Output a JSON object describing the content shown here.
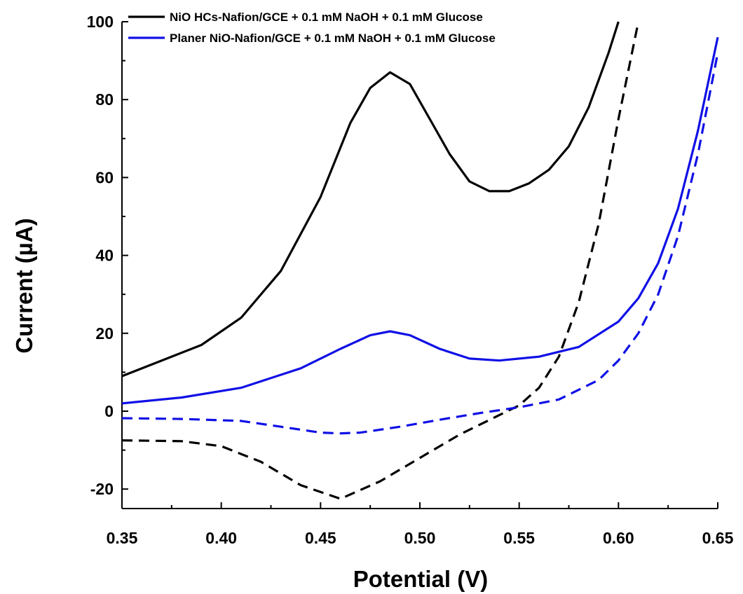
{
  "chart_data": {
    "type": "line",
    "xlabel": "Potential (V)",
    "ylabel": "Current (µA)",
    "xlim": [
      0.35,
      0.65
    ],
    "ylim": [
      -25,
      100
    ],
    "xticks": [
      "0.35",
      "0.40",
      "0.45",
      "0.50",
      "0.55",
      "0.60",
      "0.65"
    ],
    "yticks": [
      "-20",
      "0",
      "20",
      "40",
      "60",
      "80",
      "100"
    ],
    "legend_position": "top",
    "series": [
      {
        "name": "NiO HCs-Nafion/GCE + 0.1 mM NaOH + 0.1 mM Glucose",
        "color": "#000000",
        "style": "solid",
        "x": [
          0.35,
          0.37,
          0.39,
          0.41,
          0.43,
          0.45,
          0.465,
          0.475,
          0.485,
          0.495,
          0.505,
          0.515,
          0.525,
          0.535,
          0.545,
          0.555,
          0.565,
          0.575,
          0.585,
          0.59,
          0.595,
          0.6
        ],
        "y": [
          9,
          13,
          17,
          24,
          36,
          55,
          74,
          83,
          87,
          84,
          75,
          66,
          59,
          56.5,
          56.5,
          58.5,
          62,
          68,
          78,
          85,
          92,
          100
        ]
      },
      {
        "name": "",
        "color": "#000000",
        "style": "dashed",
        "x": [
          0.35,
          0.38,
          0.4,
          0.42,
          0.44,
          0.46,
          0.48,
          0.5,
          0.52,
          0.54,
          0.55,
          0.56,
          0.57,
          0.58,
          0.59,
          0.6,
          0.61
        ],
        "y": [
          -7.5,
          -7.7,
          -9,
          -13,
          -19,
          -22.5,
          -18,
          -12,
          -6,
          -1,
          1.5,
          6,
          14,
          28,
          48,
          75,
          100
        ]
      },
      {
        "name": "Planer NiO-Nafion/GCE + 0.1 mM NaOH + 0.1 mM Glucose",
        "color": "#1010e6",
        "style": "solid",
        "x": [
          0.35,
          0.38,
          0.41,
          0.44,
          0.46,
          0.475,
          0.485,
          0.495,
          0.51,
          0.525,
          0.54,
          0.56,
          0.58,
          0.6,
          0.61,
          0.62,
          0.63,
          0.64,
          0.65
        ],
        "y": [
          2,
          3.5,
          6,
          11,
          16,
          19.5,
          20.5,
          19.5,
          16,
          13.5,
          13,
          14,
          16.5,
          23,
          29,
          38,
          52,
          72,
          96
        ]
      },
      {
        "name": "",
        "color": "#1010e6",
        "style": "dashed",
        "x": [
          0.35,
          0.38,
          0.41,
          0.43,
          0.45,
          0.46,
          0.47,
          0.49,
          0.51,
          0.53,
          0.55,
          0.57,
          0.59,
          0.6,
          0.61,
          0.62,
          0.63,
          0.64,
          0.65
        ],
        "y": [
          -1.8,
          -2,
          -2.5,
          -4,
          -5.5,
          -5.7,
          -5.5,
          -4,
          -2.2,
          -0.5,
          1,
          3,
          8,
          13,
          20,
          30,
          45,
          66,
          92
        ]
      }
    ]
  }
}
